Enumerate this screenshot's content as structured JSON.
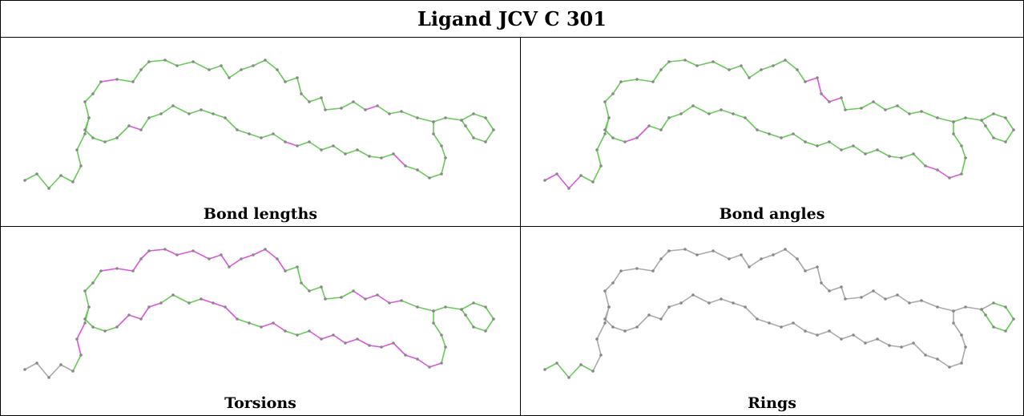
{
  "title": "Ligand JCV C 301",
  "panels": [
    {
      "caption": "Bond lengths"
    },
    {
      "caption": "Bond angles"
    },
    {
      "caption": "Torsions"
    },
    {
      "caption": "Rings"
    }
  ]
}
